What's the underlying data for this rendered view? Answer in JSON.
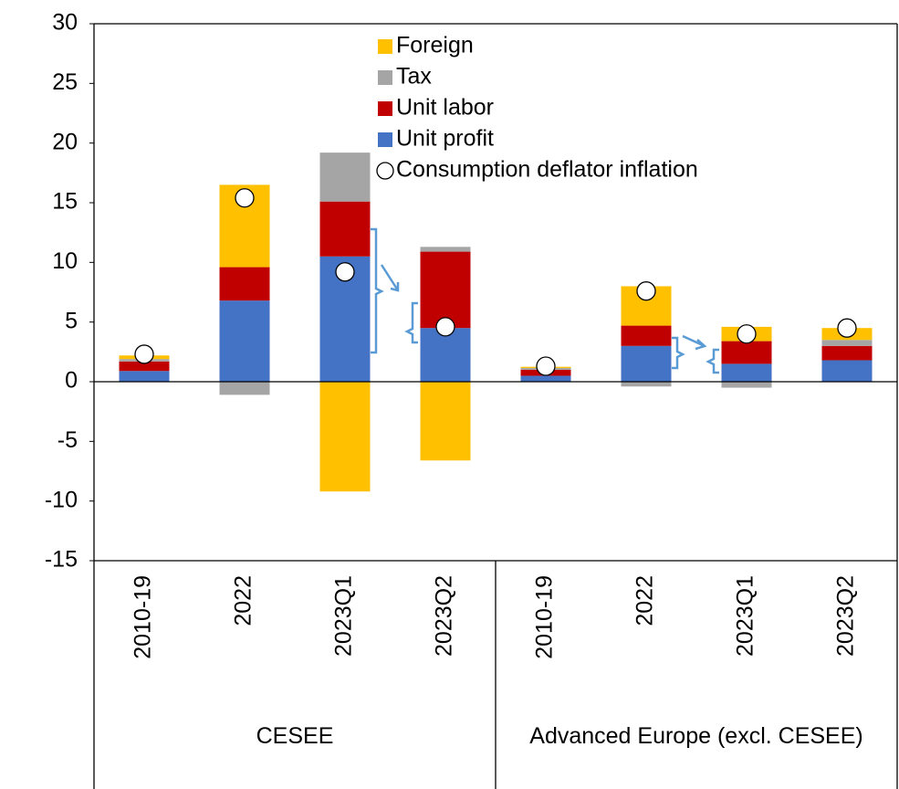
{
  "chart_data": {
    "type": "bar",
    "stacked": true,
    "groups": [
      {
        "name": "CESEE",
        "size": 4
      },
      {
        "name": "Advanced Europe (excl. CESEE)",
        "size": 4
      }
    ],
    "categories": [
      "2010-19",
      "2022",
      "2023Q1",
      "2023Q2",
      "2010-19",
      "2022",
      "2023Q1",
      "2023Q2"
    ],
    "series": [
      {
        "name": "Unit profit",
        "color": "#4472c4",
        "values": [
          0.9,
          6.8,
          10.5,
          4.5,
          0.5,
          3.0,
          1.5,
          1.8
        ]
      },
      {
        "name": "Unit labor",
        "color": "#c00000",
        "values": [
          0.8,
          2.8,
          4.6,
          6.4,
          0.5,
          1.7,
          1.9,
          1.2
        ]
      },
      {
        "name": "Tax",
        "color": "#a5a5a5",
        "values": [
          0.2,
          -1.1,
          4.1,
          0.4,
          0.15,
          -0.4,
          -0.5,
          0.5
        ]
      },
      {
        "name": "Foreign",
        "color": "#ffc000",
        "values": [
          0.3,
          6.9,
          -9.2,
          -6.6,
          0.1,
          3.3,
          1.2,
          1.0
        ]
      },
      {
        "name": "Consumption deflator inflation",
        "type": "marker",
        "color": "#ffffff",
        "values": [
          2.3,
          15.4,
          9.2,
          4.6,
          1.3,
          7.6,
          4.0,
          4.5
        ]
      }
    ],
    "ylim": [
      -15,
      30
    ],
    "yticks": [
      -15,
      -10,
      -5,
      0,
      5,
      10,
      15,
      20,
      25,
      30
    ],
    "grid": false
  }
}
